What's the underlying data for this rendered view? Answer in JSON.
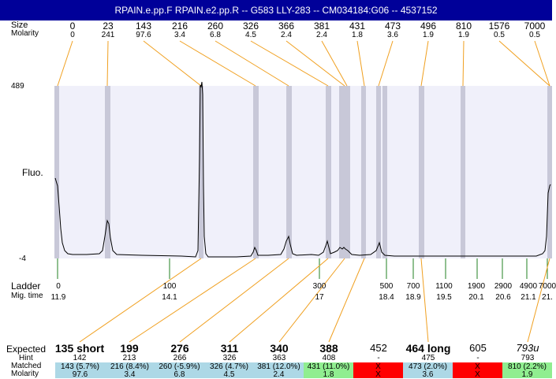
{
  "title": "RPAIN.e.pp.F  RPAIN.e2.pp.R -- G583 LLY-283 -- CM034184:G06 -- 4537152",
  "labels": {
    "size": "Size",
    "molarity": "Molarity",
    "fluo": "Fluo.",
    "ymax": "489",
    "ymin": "-4",
    "ladder": "Ladder",
    "migtime": "Mig. time",
    "expected": "Expected",
    "hint": "Hint",
    "matched": "Matched",
    "molarity_bottom": "Molarity"
  },
  "colors": {
    "title_bg": "#000099",
    "plot_bg": "#f0f0fa",
    "band": "#c8c8d8",
    "peak_line": "#f0a020",
    "ladder_line": "#208020",
    "matched_blue": "#add8e6",
    "matched_green": "#90ee90",
    "matched_red": "#ff0000"
  },
  "peaks": [
    {
      "size": "0",
      "molarity": "0"
    },
    {
      "size": "23",
      "molarity": "241"
    },
    {
      "size": "143",
      "molarity": "97.6"
    },
    {
      "size": "216",
      "molarity": "3.4"
    },
    {
      "size": "260",
      "molarity": "6.8"
    },
    {
      "size": "326",
      "molarity": "4.5"
    },
    {
      "size": "366",
      "molarity": "2.4"
    },
    {
      "size": "381",
      "molarity": "2.4"
    },
    {
      "size": "431",
      "molarity": "1.8"
    },
    {
      "size": "473",
      "molarity": "3.6"
    },
    {
      "size": "496",
      "molarity": "1.9"
    },
    {
      "size": "810",
      "molarity": "1.9"
    },
    {
      "size": "1576",
      "molarity": "0.5"
    },
    {
      "size": "7000",
      "molarity": "0.5"
    }
  ],
  "ladder": [
    {
      "size": "0",
      "time": "11.9"
    },
    {
      "size": "100",
      "time": "14.1"
    },
    {
      "size": "300",
      "time": "17"
    },
    {
      "size": "500",
      "time": "18.4"
    },
    {
      "size": "700",
      "time": "18.9"
    },
    {
      "size": "1100",
      "time": "19.5"
    },
    {
      "size": "1900",
      "time": "20.1"
    },
    {
      "size": "2900",
      "time": "20.6"
    },
    {
      "size": "4900",
      "time": "21.1"
    },
    {
      "size": "7000",
      "time": "21."
    }
  ],
  "expected": [
    {
      "label": "135 short",
      "bold": true,
      "italic": false,
      "hint": "142",
      "matched": "143 (5.7%)",
      "molarity": "97.6",
      "status": "blue"
    },
    {
      "label": "199",
      "bold": true,
      "italic": false,
      "hint": "213",
      "matched": "216 (8.4%)",
      "molarity": "3.4",
      "status": "blue"
    },
    {
      "label": "276",
      "bold": true,
      "italic": false,
      "hint": "266",
      "matched": "260 (-5.9%)",
      "molarity": "6.8",
      "status": "blue"
    },
    {
      "label": "311",
      "bold": true,
      "italic": false,
      "hint": "326",
      "matched": "326 (4.7%)",
      "molarity": "4.5",
      "status": "blue"
    },
    {
      "label": "340",
      "bold": true,
      "italic": false,
      "hint": "363",
      "matched": "381 (12.0%)",
      "molarity": "2.4",
      "status": "blue"
    },
    {
      "label": "388",
      "bold": true,
      "italic": false,
      "hint": "408",
      "matched": "431 (11.0%)",
      "molarity": "1.8",
      "status": "green"
    },
    {
      "label": "452",
      "bold": false,
      "italic": false,
      "hint": "-",
      "matched": "X",
      "molarity": "X",
      "status": "red"
    },
    {
      "label": "464 long",
      "bold": true,
      "italic": false,
      "hint": "475",
      "matched": "473 (2.0%)",
      "molarity": "3.6",
      "status": "blue"
    },
    {
      "label": "605",
      "bold": false,
      "italic": false,
      "hint": "-",
      "matched": "X",
      "molarity": "X",
      "status": "red"
    },
    {
      "label": "793u",
      "bold": false,
      "italic": true,
      "hint": "793",
      "matched": "810 (2.2%)",
      "molarity": "1.9",
      "status": "green"
    }
  ]
}
